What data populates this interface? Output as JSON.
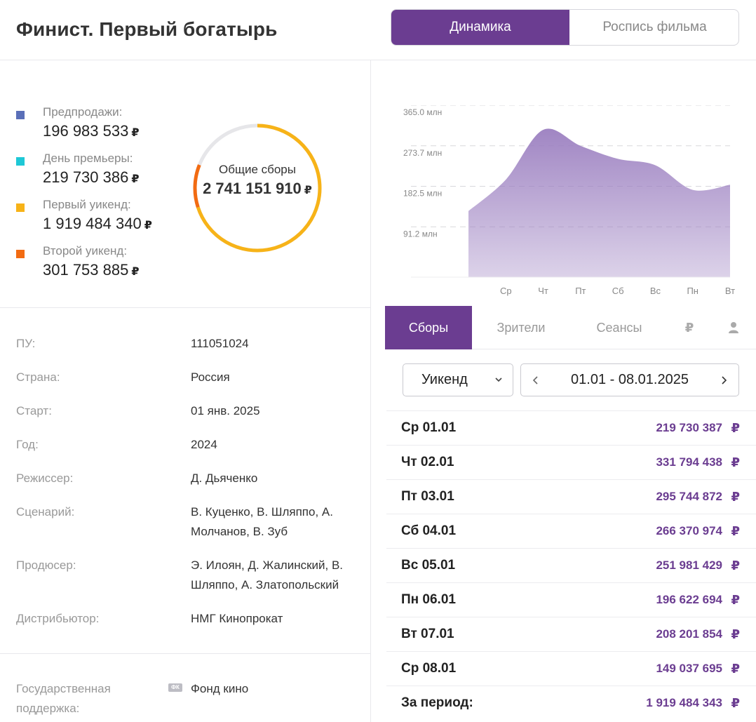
{
  "header": {
    "title": "Финист. Первый богатырь",
    "tab_active": "Динамика",
    "tab_inactive": "Роспись фильма"
  },
  "currency": "₽",
  "legend": [
    {
      "label": "Предпродажи:",
      "value": "196 983 533",
      "color": "#5a6fb8"
    },
    {
      "label": "День премьеры:",
      "value": "219 730 386",
      "color": "#1ec8d6"
    },
    {
      "label": "Первый уикенд:",
      "value": "1 919 484 340",
      "color": "#f7b318"
    },
    {
      "label": "Второй уикенд:",
      "value": "301 753 885",
      "color": "#f26b12"
    }
  ],
  "donut": {
    "label": "Общие сборы",
    "total": "2 741 151 910",
    "shares": [
      0.0719,
      0.0802,
      0.7003,
      0.1101
    ]
  },
  "info": {
    "pu_label": "ПУ:",
    "pu_value": "111051024",
    "country_label": "Страна:",
    "country_value": "Россия",
    "start_label": "Старт:",
    "start_value": "01 янв. 2025",
    "year_label": "Год:",
    "year_value": "2024",
    "director_label": "Режиссер:",
    "director_value": "Д. Дьяченко",
    "script_label": "Сценарий:",
    "script_value": "В. Куценко, В. Шляппо, А. Молчанов, В. Зуб",
    "producer_label": "Продюсер:",
    "producer_value": "Э. Илоян, Д. Жалинский, В. Шляппо, А. Златопольский",
    "distributor_label": "Дистрибьютор:",
    "distributor_value": "НМГ Кинопрокат",
    "support_label": "Государственная поддержка:",
    "support_badge": "ФК",
    "support_value": "Фонд кино"
  },
  "chart_data": {
    "type": "area",
    "categories": [
      "Ср",
      "Чт",
      "Пт",
      "Сб",
      "Вс",
      "Пн",
      "Вт",
      "Ср"
    ],
    "tick_labels": [
      "",
      "Ср",
      "Чт",
      "Пт",
      "Сб",
      "Вс",
      "Пн",
      "Вт"
    ],
    "values": [
      149.0,
      219.7,
      331.8,
      295.7,
      266.4,
      252.0,
      196.6,
      208.2
    ],
    "units": "млн",
    "y_ticks": [
      91.2,
      182.5,
      273.7,
      365.0
    ],
    "y_tick_labels": [
      "91.2 млн",
      "182.5 млн",
      "273.7 млн",
      "365.0 млн"
    ],
    "ylim": [
      0,
      365.0
    ],
    "grid": true,
    "color": "#9b7fc0"
  },
  "tabs": {
    "sales": "Сборы",
    "viewers": "Зрители",
    "sessions": "Сеансы",
    "rub_icon": "₽",
    "person_icon": "person-icon"
  },
  "filter": {
    "period": "Уикенд",
    "range": "01.01 - 08.01.2025"
  },
  "rows": [
    {
      "date": "Ср 01.01",
      "value": "219 730 387"
    },
    {
      "date": "Чт 02.01",
      "value": "331 794 438"
    },
    {
      "date": "Пт 03.01",
      "value": "295 744 872"
    },
    {
      "date": "Сб 04.01",
      "value": "266 370 974"
    },
    {
      "date": "Вс 05.01",
      "value": "251 981 429"
    },
    {
      "date": "Пн 06.01",
      "value": "196 622 694"
    },
    {
      "date": "Вт 07.01",
      "value": "208 201 854"
    },
    {
      "date": "Ср 08.01",
      "value": "149 037 695"
    }
  ],
  "total_row": {
    "label": "За период:",
    "value": "1 919 484 343"
  }
}
